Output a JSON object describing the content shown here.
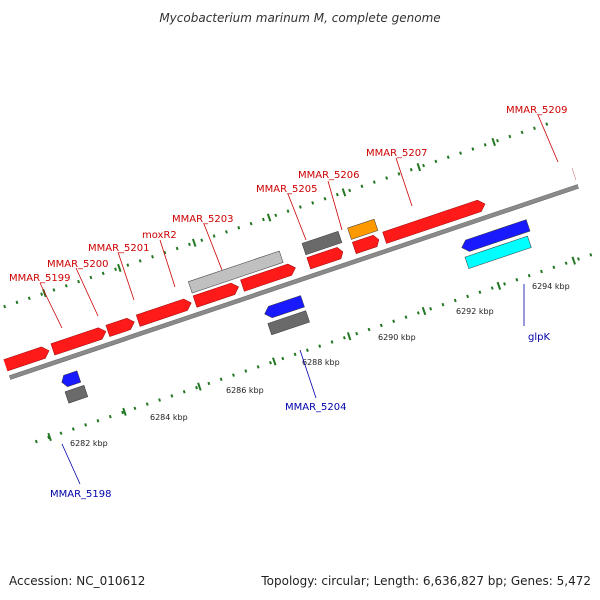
{
  "title": "Mycobacterium marinum M, complete genome",
  "footer": {
    "accession": "Accession: NC_010612",
    "summary": "Topology: circular; Length: 6,636,827 bp; Genes: 5,472"
  },
  "colors": {
    "forward_label": "#cc0000",
    "reverse_label": "#0000aa",
    "ruler": "#227722",
    "backbone": "#888888",
    "gene_red": "#ff1a1a",
    "gene_blue": "#1a1aff",
    "gene_gray": "#6a6a6a",
    "gene_lightgray": "#c0c0c0",
    "gene_orange": "#ff9900",
    "gene_cyan": "#00ffff",
    "gene_navy": "#4a4a8a"
  },
  "ruler_labels": [
    "6282 kbp",
    "6284 kbp",
    "6286 kbp",
    "6288 kbp",
    "6290 kbp",
    "6292 kbp",
    "6294 kbp"
  ],
  "gene_labels": {
    "forward": [
      "MMAR_5199",
      "MMAR_5200",
      "MMAR_5201",
      "moxR2",
      "MMAR_5203",
      "MMAR_5205",
      "MMAR_5206",
      "MMAR_5207",
      "MMAR_5209"
    ],
    "reverse": [
      "MMAR_5198",
      "MMAR_5204",
      "glpK"
    ]
  }
}
